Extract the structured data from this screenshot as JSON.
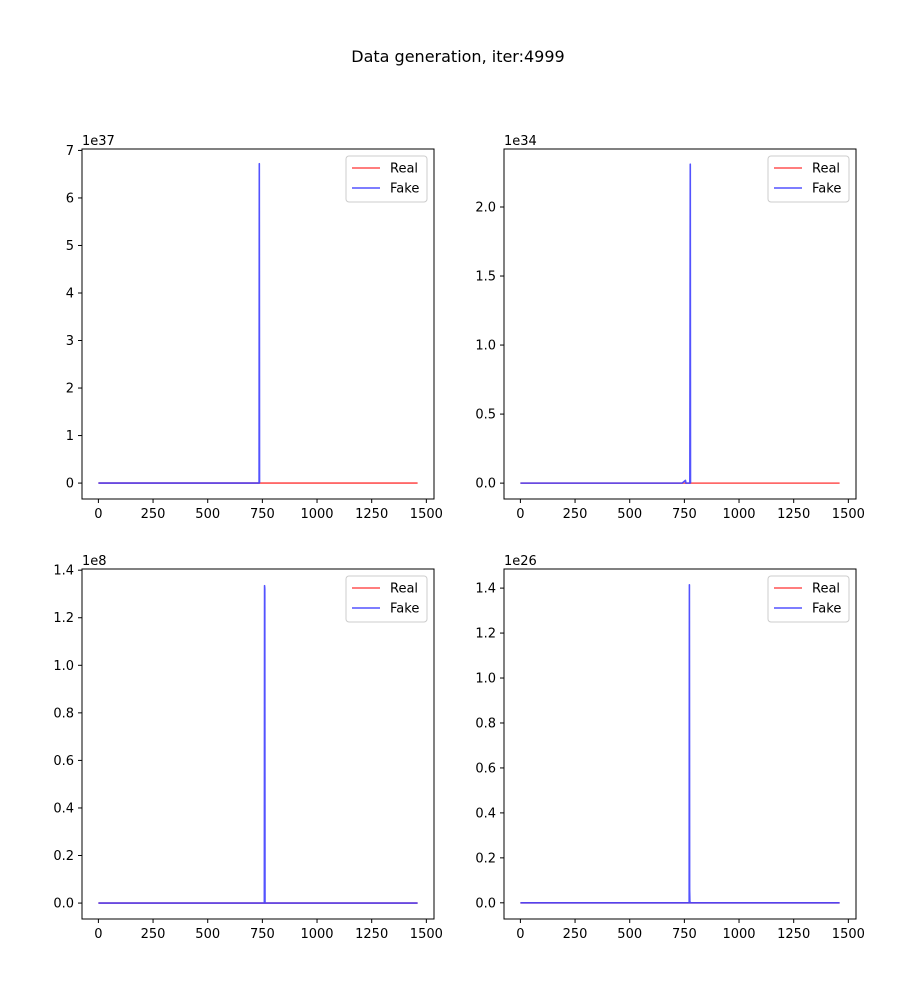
{
  "figure_title": "Data generation, iter:4999",
  "colors": {
    "real": "#ff4040",
    "fake": "#4040ff"
  },
  "chart_data": [
    {
      "type": "line",
      "title": "",
      "xlabel": "",
      "ylabel": "",
      "offset_text": "1e37",
      "scale": 1e+37,
      "xlim": [
        -75,
        1535
      ],
      "ylim": [
        -3.35e+36,
        7.03e+37
      ],
      "xticks": [
        0,
        250,
        500,
        750,
        1000,
        1250,
        1500
      ],
      "xtick_labels": [
        "0",
        "250",
        "500",
        "750",
        "1000",
        "1250",
        "1500"
      ],
      "yticks": [
        0,
        1e+37,
        2e+37,
        3e+37,
        4e+37,
        5e+37,
        6e+37,
        7e+37
      ],
      "ytick_labels": [
        "0",
        "1",
        "2",
        "3",
        "4",
        "5",
        "6",
        "7"
      ],
      "legend": {
        "position": "upper right",
        "entries": [
          "Real",
          "Fake"
        ]
      },
      "series": [
        {
          "name": "Real",
          "x": [
            0,
            1460
          ],
          "y": [
            0,
            0
          ]
        },
        {
          "name": "Fake",
          "x": [
            0,
            735,
            736,
            737,
            738
          ],
          "y": [
            0,
            0,
            6.72e+37,
            0,
            0
          ]
        }
      ]
    },
    {
      "type": "line",
      "title": "",
      "xlabel": "",
      "ylabel": "",
      "offset_text": "1e34",
      "scale": 1e+34,
      "xlim": [
        -75,
        1535
      ],
      "ylim": [
        -1.15e+33,
        2.42e+34
      ],
      "xticks": [
        0,
        250,
        500,
        750,
        1000,
        1250,
        1500
      ],
      "xtick_labels": [
        "0",
        "250",
        "500",
        "750",
        "1000",
        "1250",
        "1500"
      ],
      "yticks": [
        0,
        5e+33,
        1e+34,
        1.5e+34,
        2e+34
      ],
      "ytick_labels": [
        "0.0",
        "0.5",
        "1.0",
        "1.5",
        "2.0"
      ],
      "legend": {
        "position": "upper right",
        "entries": [
          "Real",
          "Fake"
        ]
      },
      "series": [
        {
          "name": "Real",
          "x": [
            0,
            1460
          ],
          "y": [
            0,
            0
          ]
        },
        {
          "name": "Fake",
          "x": [
            0,
            740,
            755,
            757,
            760,
            775,
            777,
            778,
            779
          ],
          "y": [
            0,
            0,
            2e+32,
            0,
            0,
            0,
            2.31e+34,
            0,
            0
          ]
        }
      ]
    },
    {
      "type": "line",
      "title": "",
      "xlabel": "",
      "ylabel": "",
      "offset_text": "1e8",
      "scale": 100000000.0,
      "xlim": [
        -75,
        1535
      ],
      "ylim": [
        -6700000.0,
        140500000.0
      ],
      "xticks": [
        0,
        250,
        500,
        750,
        1000,
        1250,
        1500
      ],
      "xtick_labels": [
        "0",
        "250",
        "500",
        "750",
        "1000",
        "1250",
        "1500"
      ],
      "yticks": [
        0,
        20000000.0,
        40000000.0,
        60000000.0,
        80000000.0,
        100000000.0,
        120000000.0,
        140000000.0
      ],
      "ytick_labels": [
        "0.0",
        "0.2",
        "0.4",
        "0.6",
        "0.8",
        "1.0",
        "1.2",
        "1.4"
      ],
      "legend": {
        "position": "upper right",
        "entries": [
          "Real",
          "Fake"
        ]
      },
      "series": [
        {
          "name": "Real",
          "x": [
            0,
            1460
          ],
          "y": [
            0,
            0
          ]
        },
        {
          "name": "Fake",
          "x": [
            0,
            759,
            760,
            761,
            762,
            1460
          ],
          "y": [
            0,
            0,
            133500000.0,
            132000000.0,
            0,
            0
          ]
        }
      ]
    },
    {
      "type": "line",
      "title": "",
      "xlabel": "",
      "ylabel": "",
      "offset_text": "1e26",
      "scale": 1e+26,
      "xlim": [
        -75,
        1535
      ],
      "ylim": [
        -7.2e+24,
        1.485e+26
      ],
      "xticks": [
        0,
        250,
        500,
        750,
        1000,
        1250,
        1500
      ],
      "xtick_labels": [
        "0",
        "250",
        "500",
        "750",
        "1000",
        "1250",
        "1500"
      ],
      "yticks": [
        0,
        2e+25,
        4e+25,
        6e+25,
        8e+25,
        1e+26,
        1.2e+26,
        1.4e+26
      ],
      "ytick_labels": [
        "0.0",
        "0.2",
        "0.4",
        "0.6",
        "0.8",
        "1.0",
        "1.2",
        "1.4"
      ],
      "legend": {
        "position": "upper right",
        "entries": [
          "Real",
          "Fake"
        ]
      },
      "series": [
        {
          "name": "Real",
          "x": [
            0,
            1460
          ],
          "y": [
            0,
            0
          ]
        },
        {
          "name": "Fake",
          "x": [
            0,
            772,
            773,
            774,
            775,
            776,
            1460
          ],
          "y": [
            0,
            0,
            1.415e+26,
            6e+24,
            1e+24,
            0,
            0
          ]
        }
      ]
    }
  ]
}
